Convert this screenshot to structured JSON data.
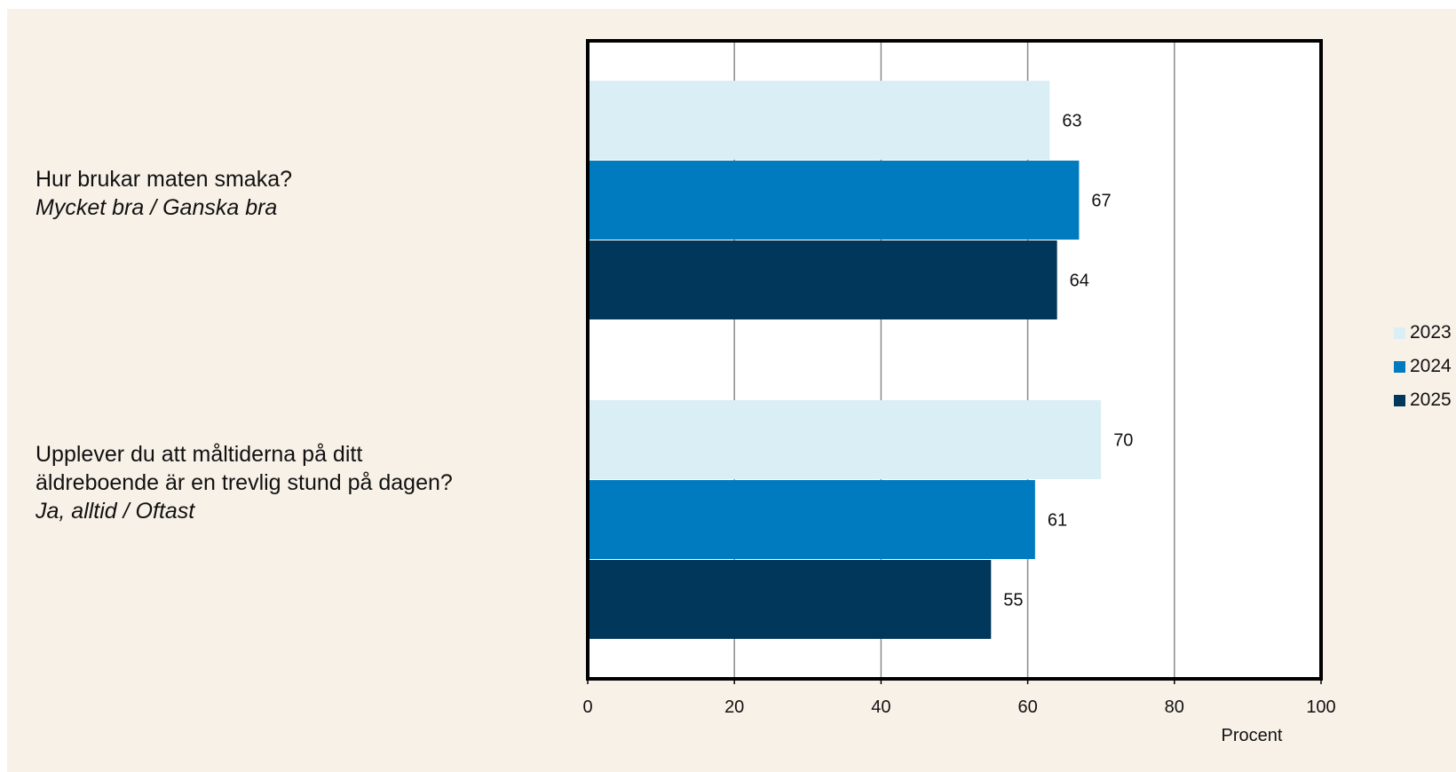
{
  "chart_data": {
    "type": "bar",
    "orientation": "horizontal",
    "categories": [
      {
        "question": "Hur brukar maten smaka?",
        "answer": "Mycket bra / Ganska bra"
      },
      {
        "question": "Upplever du att måltiderna på ditt äldreboende är en trevlig stund på dagen?",
        "answer": "Ja, alltid / Oftast"
      }
    ],
    "series": [
      {
        "name": "2023",
        "color": "#daeef6",
        "values": [
          63,
          70
        ]
      },
      {
        "name": "2024",
        "color": "#007bc0",
        "values": [
          67,
          61
        ]
      },
      {
        "name": "2025",
        "color": "#00375b",
        "values": [
          64,
          55
        ]
      }
    ],
    "xlabel": "Procent",
    "xlim": [
      0,
      100
    ],
    "xticks": [
      0,
      20,
      40,
      60,
      80,
      100
    ],
    "grid": true,
    "legend_position": "right",
    "data_labels": true
  }
}
